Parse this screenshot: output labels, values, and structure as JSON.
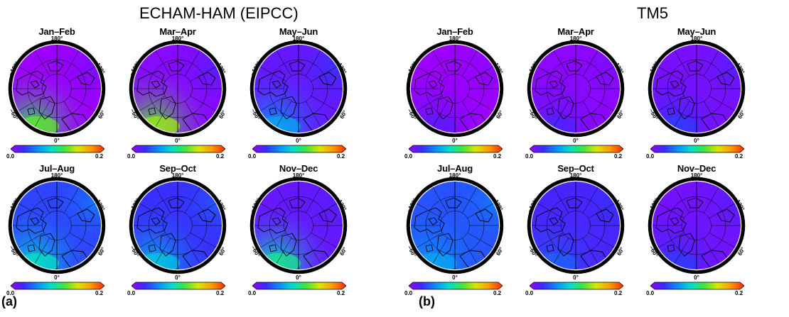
{
  "figure": {
    "panels": [
      {
        "label": "(a)",
        "model": "ECHAM-HAM (EIPCC)",
        "colorbar": {
          "min": "0.0",
          "max": "0.2"
        },
        "maps": [
          {
            "season": "Jan–Feb",
            "atlantic_level": 0.55,
            "pacific_level": 0.05,
            "interior_level": 0.0
          },
          {
            "season": "Mar–Apr",
            "atlantic_level": 0.6,
            "pacific_level": 0.1,
            "interior_level": 0.03
          },
          {
            "season": "May–Jun",
            "atlantic_level": 0.3,
            "pacific_level": 0.15,
            "interior_level": 0.08
          },
          {
            "season": "Jul–Aug",
            "atlantic_level": 0.4,
            "pacific_level": 0.25,
            "interior_level": 0.18
          },
          {
            "season": "Sep–Oct",
            "atlantic_level": 0.35,
            "pacific_level": 0.2,
            "interior_level": 0.15
          },
          {
            "season": "Nov–Dec",
            "atlantic_level": 0.45,
            "pacific_level": 0.1,
            "interior_level": 0.08
          }
        ]
      },
      {
        "label": "(b)",
        "model": "TM5",
        "colorbar": {
          "min": "0.0",
          "max": "0.2"
        },
        "maps": [
          {
            "season": "Jan–Feb",
            "atlantic_level": 0.08,
            "pacific_level": 0.03,
            "interior_level": 0.0
          },
          {
            "season": "Mar–Apr",
            "atlantic_level": 0.1,
            "pacific_level": 0.05,
            "interior_level": 0.02
          },
          {
            "season": "May–Jun",
            "atlantic_level": 0.15,
            "pacific_level": 0.1,
            "interior_level": 0.05
          },
          {
            "season": "Jul–Aug",
            "atlantic_level": 0.3,
            "pacific_level": 0.25,
            "interior_level": 0.2
          },
          {
            "season": "Sep–Oct",
            "atlantic_level": 0.2,
            "pacific_level": 0.15,
            "interior_level": 0.12
          },
          {
            "season": "Nov–Dec",
            "atlantic_level": 0.15,
            "pacific_level": 0.1,
            "interior_level": 0.06
          }
        ]
      }
    ],
    "longitude_labels": {
      "top": "180°",
      "bottom": "0°",
      "upper_left": "−120°",
      "upper_right": "120°",
      "lower_left": "−60°",
      "lower_right": "60°"
    },
    "colorscale": [
      "#9b00ff",
      "#3a2bff",
      "#0a8cff",
      "#00dcd0",
      "#3ee63e",
      "#d8e600",
      "#ff9a00",
      "#ff2a00"
    ],
    "land_outline_color": "#000000"
  }
}
